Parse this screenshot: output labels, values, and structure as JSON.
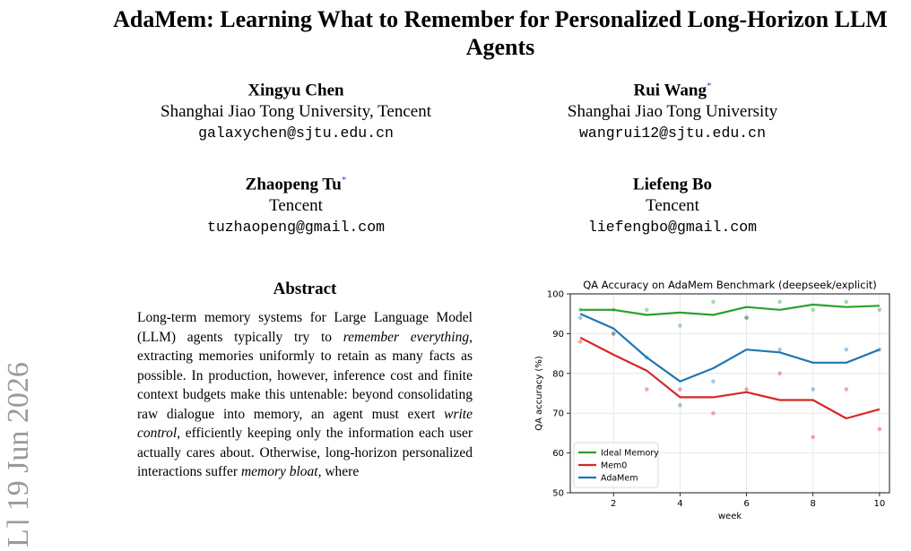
{
  "paper": {
    "title": "AdaMem: Learning What to Remember for Personalized Long-Horizon LLM Agents",
    "arxiv_stamp": "L] 19 Jun 2026",
    "authors": [
      {
        "name": "Xingyu Chen",
        "mark": "",
        "affiliation": "Shanghai Jiao Tong University, Tencent",
        "email": "galaxychen@sjtu.edu.cn"
      },
      {
        "name": "Rui Wang",
        "mark": "*",
        "affiliation": "Shanghai Jiao Tong University",
        "email": "wangrui12@sjtu.edu.cn"
      },
      {
        "name": "Zhaopeng Tu",
        "mark": "*",
        "affiliation": "Tencent",
        "email": "tuzhaopeng@gmail.com"
      },
      {
        "name": "Liefeng Bo",
        "mark": "",
        "affiliation": "Tencent",
        "email": "liefengbo@gmail.com"
      }
    ],
    "abstract_heading": "Abstract",
    "abstract_segments": [
      {
        "text": "Long-term memory systems for Large Language Model (LLM) agents typically try to ",
        "em": false
      },
      {
        "text": "remember everything",
        "em": true
      },
      {
        "text": ", extracting memories uniformly to retain as many facts as possible. In production, however, inference cost and finite context budgets make this untenable: beyond consolidating raw dialogue into memory, an agent must exert ",
        "em": false
      },
      {
        "text": "write control",
        "em": true
      },
      {
        "text": ", efficiently keeping only the information each user actually cares about. Otherwise, long-horizon personalized interactions suffer ",
        "em": false
      },
      {
        "text": "memory bloat",
        "em": true
      },
      {
        "text": ", where",
        "em": false
      }
    ]
  },
  "chart_data": {
    "type": "line",
    "title": "QA Accuracy on AdaMem Benchmark (deepseek/explicit)",
    "xlabel": "week",
    "ylabel": "QA accuracy (%)",
    "xlim": [
      0.7,
      10.3
    ],
    "ylim": [
      50,
      100
    ],
    "xticks": [
      2,
      4,
      6,
      8,
      10
    ],
    "yticks": [
      50,
      60,
      70,
      80,
      90,
      100
    ],
    "grid": true,
    "legend_position": "lower-left",
    "x": [
      1,
      2,
      3,
      4,
      5,
      6,
      7,
      8,
      9,
      10
    ],
    "series": [
      {
        "name": "Ideal Memory",
        "color": "#2ca02c",
        "values": [
          96,
          96,
          94.7,
          95.3,
          94.7,
          96.7,
          96,
          97.3,
          96.7,
          97
        ],
        "points": [
          [
            1,
            96
          ],
          [
            2,
            96
          ],
          [
            3,
            96
          ],
          [
            4,
            92
          ],
          [
            5,
            98
          ],
          [
            6,
            94
          ],
          [
            7,
            98
          ],
          [
            8,
            96
          ],
          [
            9,
            98
          ],
          [
            10,
            96
          ]
        ]
      },
      {
        "name": "Mem0",
        "color": "#d62728",
        "values": [
          89,
          84.7,
          80.7,
          74,
          74,
          75.3,
          73.3,
          73.3,
          68.7,
          71
        ],
        "points": [
          [
            1,
            88
          ],
          [
            2,
            90
          ],
          [
            3,
            76
          ],
          [
            4,
            76
          ],
          [
            5,
            70
          ],
          [
            6,
            76
          ],
          [
            7,
            80
          ],
          [
            8,
            64
          ],
          [
            9,
            76
          ],
          [
            10,
            66
          ]
        ]
      },
      {
        "name": "AdaMem",
        "color": "#1f77b4",
        "values": [
          95,
          91.3,
          84,
          78,
          81.3,
          86,
          85.3,
          82.7,
          82.7,
          86
        ],
        "points": [
          [
            1,
            94
          ],
          [
            2,
            90
          ],
          [
            3,
            84
          ],
          [
            4,
            72
          ],
          [
            5,
            78
          ],
          [
            6,
            94
          ],
          [
            7,
            86
          ],
          [
            8,
            76
          ],
          [
            9,
            86
          ],
          [
            10,
            86
          ]
        ]
      }
    ]
  }
}
